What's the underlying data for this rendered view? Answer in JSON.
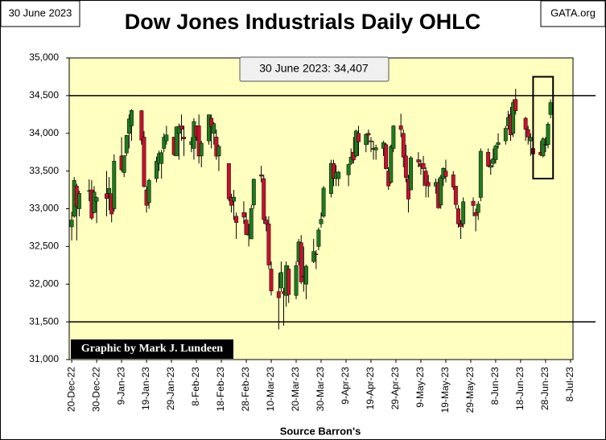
{
  "chart_data": {
    "type": "candlestick",
    "title": "Dow Jones Industrials Daily OHLC",
    "date_label": "30 June 2023",
    "site": "GATA.org",
    "credit": "Graphic by Mark J. Lundeen",
    "xlabel": "Source Barron's",
    "annotation": "30 June 2023:  34,407",
    "up_color": "#1e7b1e",
    "down_color": "#c8102e",
    "reference_lines": [
      34500,
      31500
    ],
    "highlight_box": {
      "xlim": [
        "2023-06-23",
        "2023-07-01"
      ],
      "ylim": [
        33400,
        34750
      ]
    },
    "xlim": [
      "2022-12-19",
      "2023-07-09"
    ],
    "xticks": [
      {
        "value": "2022-12-20",
        "label": "20-Dec-22"
      },
      {
        "value": "2022-12-30",
        "label": "30-Dec-22"
      },
      {
        "value": "2023-01-09",
        "label": "9-Jan-23"
      },
      {
        "value": "2023-01-19",
        "label": "19-Jan-23"
      },
      {
        "value": "2023-01-29",
        "label": "29-Jan-23"
      },
      {
        "value": "2023-02-08",
        "label": "8-Feb-23"
      },
      {
        "value": "2023-02-18",
        "label": "18-Feb-23"
      },
      {
        "value": "2023-02-28",
        "label": "28-Feb-23"
      },
      {
        "value": "2023-03-10",
        "label": "10-Mar-23"
      },
      {
        "value": "2023-03-20",
        "label": "20-Mar-23"
      },
      {
        "value": "2023-03-30",
        "label": "30-Mar-23"
      },
      {
        "value": "2023-04-09",
        "label": "9-Apr-23"
      },
      {
        "value": "2023-04-19",
        "label": "19-Apr-23"
      },
      {
        "value": "2023-04-29",
        "label": "29-Apr-23"
      },
      {
        "value": "2023-05-09",
        "label": "9-May-23"
      },
      {
        "value": "2023-05-19",
        "label": "19-May-23"
      },
      {
        "value": "2023-05-29",
        "label": "29-May-23"
      },
      {
        "value": "2023-06-08",
        "label": "8-Jun-23"
      },
      {
        "value": "2023-06-18",
        "label": "18-Jun-23"
      },
      {
        "value": "2023-06-28",
        "label": "28-Jun-23"
      },
      {
        "value": "2023-07-08",
        "label": "8-Jul-23"
      }
    ],
    "ylim": [
      31000,
      35000
    ],
    "yticks": [
      {
        "value": 31000,
        "label": "31,000"
      },
      {
        "value": 31500,
        "label": "31,500"
      },
      {
        "value": 32000,
        "label": "32,000"
      },
      {
        "value": 32500,
        "label": "32,500"
      },
      {
        "value": 33000,
        "label": "33,000"
      },
      {
        "value": 33500,
        "label": "33,500"
      },
      {
        "value": 34000,
        "label": "34,000"
      },
      {
        "value": 34500,
        "label": "34,500"
      },
      {
        "value": 35000,
        "label": "35,000"
      }
    ],
    "x": [
      "2022-12-20",
      "2022-12-21",
      "2022-12-22",
      "2022-12-23",
      "2022-12-27",
      "2022-12-28",
      "2022-12-29",
      "2022-12-30",
      "2023-01-03",
      "2023-01-04",
      "2023-01-05",
      "2023-01-06",
      "2023-01-09",
      "2023-01-10",
      "2023-01-11",
      "2023-01-12",
      "2023-01-13",
      "2023-01-17",
      "2023-01-18",
      "2023-01-19",
      "2023-01-20",
      "2023-01-23",
      "2023-01-24",
      "2023-01-25",
      "2023-01-26",
      "2023-01-27",
      "2023-01-30",
      "2023-01-31",
      "2023-02-01",
      "2023-02-02",
      "2023-02-03",
      "2023-02-06",
      "2023-02-07",
      "2023-02-08",
      "2023-02-09",
      "2023-02-10",
      "2023-02-13",
      "2023-02-14",
      "2023-02-15",
      "2023-02-16",
      "2023-02-17",
      "2023-02-21",
      "2023-02-22",
      "2023-02-23",
      "2023-02-24",
      "2023-02-27",
      "2023-02-28",
      "2023-03-01",
      "2023-03-02",
      "2023-03-03",
      "2023-03-06",
      "2023-03-07",
      "2023-03-08",
      "2023-03-09",
      "2023-03-10",
      "2023-03-13",
      "2023-03-14",
      "2023-03-15",
      "2023-03-16",
      "2023-03-17",
      "2023-03-20",
      "2023-03-21",
      "2023-03-22",
      "2023-03-23",
      "2023-03-24",
      "2023-03-27",
      "2023-03-28",
      "2023-03-29",
      "2023-03-30",
      "2023-03-31",
      "2023-04-03",
      "2023-04-04",
      "2023-04-05",
      "2023-04-06",
      "2023-04-10",
      "2023-04-11",
      "2023-04-12",
      "2023-04-13",
      "2023-04-14",
      "2023-04-17",
      "2023-04-18",
      "2023-04-19",
      "2023-04-20",
      "2023-04-21",
      "2023-04-24",
      "2023-04-25",
      "2023-04-26",
      "2023-04-27",
      "2023-04-28",
      "2023-05-01",
      "2023-05-02",
      "2023-05-03",
      "2023-05-04",
      "2023-05-05",
      "2023-05-08",
      "2023-05-09",
      "2023-05-10",
      "2023-05-11",
      "2023-05-12",
      "2023-05-15",
      "2023-05-16",
      "2023-05-17",
      "2023-05-18",
      "2023-05-19",
      "2023-05-22",
      "2023-05-23",
      "2023-05-24",
      "2023-05-25",
      "2023-05-26",
      "2023-05-30",
      "2023-05-31",
      "2023-06-01",
      "2023-06-02",
      "2023-06-05",
      "2023-06-06",
      "2023-06-07",
      "2023-06-08",
      "2023-06-09",
      "2023-06-12",
      "2023-06-13",
      "2023-06-14",
      "2023-06-15",
      "2023-06-16",
      "2023-06-20",
      "2023-06-21",
      "2023-06-22",
      "2023-06-23",
      "2023-06-26",
      "2023-06-27",
      "2023-06-28",
      "2023-06-29",
      "2023-06-30"
    ],
    "open": [
      32760,
      32900,
      33300,
      33000,
      33240,
      33250,
      32950,
      33100,
      33200,
      33200,
      33200,
      33000,
      33700,
      33480,
      33740,
      34000,
      34100,
      34300,
      33950,
      33250,
      33080,
      33400,
      33600,
      33600,
      33800,
      33900,
      33950,
      33700,
      34000,
      34100,
      33950,
      33850,
      33800,
      34100,
      34100,
      33700,
      33900,
      34200,
      34000,
      33950,
      33700,
      33600,
      33150,
      33100,
      32900,
      32950,
      32850,
      32650,
      32600,
      33050,
      33450,
      33400,
      32850,
      32800,
      32200,
      31900,
      31950,
      31900,
      31850,
      32200,
      31850,
      32300,
      32550,
      32100,
      32000,
      32300,
      32400,
      32500,
      32800,
      32900,
      33200,
      33600,
      33400,
      33400,
      33450,
      33600,
      33750,
      33700,
      34000,
      33850,
      34000,
      33900,
      33800,
      33780,
      33800,
      33850,
      33500,
      33350,
      33800,
      34100,
      34000,
      33700,
      33400,
      33250,
      33650,
      33600,
      33600,
      33500,
      33350,
      33300,
      33350,
      33050,
      33400,
      33500,
      33450,
      33300,
      33000,
      32800,
      32800,
      33100,
      32950,
      32950,
      33150,
      33750,
      33550,
      33600,
      33650,
      33850,
      33900,
      34100,
      34250,
      34000,
      34450,
      34200,
      34050,
      33900,
      33800,
      33750,
      33700,
      33850,
      33850,
      34250
    ],
    "high": [
      32960,
      33420,
      33330,
      33240,
      33390,
      33380,
      33300,
      33160,
      33500,
      33420,
      33200,
      33720,
      33950,
      33710,
      33980,
      34250,
      34320,
      34310,
      34030,
      33300,
      33400,
      33690,
      33770,
      33780,
      34000,
      34100,
      33950,
      34090,
      34130,
      34250,
      34100,
      33950,
      34200,
      34100,
      34250,
      33900,
      34250,
      34250,
      34150,
      34050,
      33850,
      33600,
      33200,
      33250,
      32950,
      33100,
      32950,
      32800,
      33050,
      33400,
      33570,
      33450,
      32900,
      32900,
      32300,
      32150,
      32300,
      31950,
      32300,
      32250,
      32300,
      32600,
      32650,
      32500,
      32260,
      32600,
      32450,
      32750,
      32950,
      33300,
      33650,
      33650,
      33580,
      33500,
      33600,
      33800,
      33950,
      34050,
      34100,
      34000,
      34050,
      33950,
      33900,
      33850,
      33900,
      33870,
      33550,
      33850,
      34110,
      34260,
      34050,
      33850,
      33450,
      33700,
      33750,
      33650,
      33700,
      33550,
      33450,
      33400,
      33400,
      33450,
      33550,
      33650,
      33500,
      33300,
      33050,
      32850,
      33150,
      33150,
      33000,
      33100,
      33800,
      33800,
      33650,
      33800,
      33850,
      34000,
      34100,
      34300,
      34350,
      34450,
      34590,
      34220,
      34100,
      34000,
      33850,
      33900,
      33950,
      33950,
      34150,
      34450
    ],
    "low": [
      32580,
      32880,
      32580,
      32900,
      33100,
      32850,
      32940,
      32810,
      32900,
      32980,
      32820,
      32960,
      33490,
      33420,
      33700,
      33800,
      33900,
      33850,
      33280,
      32950,
      33000,
      33350,
      33500,
      33400,
      33750,
      33850,
      33700,
      33700,
      33650,
      33900,
      33700,
      33750,
      33650,
      33900,
      33600,
      33550,
      33850,
      33800,
      33850,
      33650,
      33500,
      33100,
      32950,
      32850,
      32600,
      32800,
      32650,
      32500,
      32600,
      33000,
      33350,
      32800,
      32700,
      32200,
      31850,
      31400,
      31900,
      31450,
      31700,
      31750,
      31800,
      32250,
      32000,
      31900,
      31800,
      32280,
      32200,
      32450,
      32750,
      32880,
      33150,
      33300,
      33300,
      33300,
      33300,
      33580,
      33600,
      33680,
      33700,
      33750,
      33850,
      33750,
      33650,
      33650,
      33700,
      33520,
      33250,
      33330,
      33750,
      33950,
      33550,
      33350,
      32950,
      33250,
      33550,
      33450,
      33300,
      33150,
      33150,
      33200,
      33000,
      33000,
      33300,
      33350,
      33250,
      33000,
      32750,
      32600,
      32750,
      32900,
      32700,
      32850,
      33100,
      33550,
      33450,
      33550,
      33600,
      33800,
      33850,
      34050,
      33900,
      33950,
      34250,
      33900,
      33850,
      33700,
      33650,
      33700,
      33680,
      33750,
      33800,
      34200
    ],
    "close": [
      32850,
      33376,
      33027,
      33204,
      33241,
      32876,
      33221,
      33147,
      33136,
      33270,
      32930,
      33631,
      33517,
      33704,
      33973,
      34190,
      34303,
      33910,
      33297,
      33045,
      33375,
      33630,
      33734,
      33744,
      33949,
      33978,
      33717,
      34086,
      34093,
      34054,
      33926,
      33891,
      34156,
      33949,
      33699,
      33869,
      34246,
      34089,
      34128,
      33697,
      33827,
      33130,
      33045,
      33154,
      32817,
      32889,
      32657,
      32662,
      33003,
      33391,
      33432,
      32856,
      32798,
      32254,
      31910,
      31820,
      32155,
      31875,
      32247,
      31862,
      32245,
      32560,
      32030,
      32106,
      32238,
      32433,
      32395,
      32718,
      32860,
      33274,
      33601,
      33403,
      33483,
      33486,
      33587,
      33685,
      33647,
      34030,
      33887,
      33987,
      33977,
      33897,
      33787,
      33809,
      33876,
      33531,
      33302,
      33827,
      34098,
      34051,
      33684,
      33414,
      33128,
      33675,
      33619,
      33562,
      33531,
      33310,
      33301,
      33349,
      33012,
      33421,
      33536,
      33427,
      33287,
      33056,
      32800,
      32765,
      33093,
      33043,
      32908,
      33061,
      33762,
      33563,
      33573,
      33665,
      33833,
      33877,
      34066,
      34212,
      33979,
      34408,
      34299,
      34053,
      33951,
      33946,
      33727,
      33714,
      33927,
      33853,
      34122,
      34407
    ]
  }
}
